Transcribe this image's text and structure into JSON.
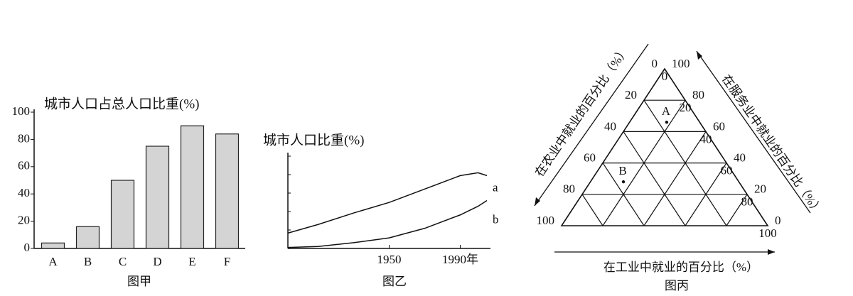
{
  "chart_data": [
    {
      "type": "bar",
      "title": "城市人口占总人口比重(%)",
      "caption": "图甲",
      "categories": [
        "A",
        "B",
        "C",
        "D",
        "E",
        "F"
      ],
      "values": [
        4,
        16,
        50,
        75,
        90,
        84
      ],
      "color": "#d4d4d4",
      "ylim": [
        0,
        100
      ],
      "yticks": [
        0,
        20,
        40,
        60,
        80,
        100
      ]
    },
    {
      "type": "line",
      "title": "城市人口比重(%)",
      "caption": "图乙",
      "x": [
        1893,
        1910,
        1930,
        1950,
        1970,
        1990,
        2000,
        2005
      ],
      "xlim": [
        1893,
        2007
      ],
      "xticks": [
        1950,
        {
          "value": 1990,
          "label": "1990年"
        }
      ],
      "ylim": [
        0,
        100
      ],
      "series": [
        {
          "name": "a",
          "color": "#111",
          "values": [
            16,
            25,
            37,
            48,
            62,
            76,
            79,
            76
          ]
        },
        {
          "name": "b",
          "color": "#111",
          "values": [
            1,
            2,
            6,
            11,
            21,
            35,
            44,
            50
          ]
        }
      ]
    },
    {
      "type": "ternary",
      "caption": "图丙",
      "left_axis": "在农业中就业的百分比（%）",
      "right_axis": "在服务业中就业的百分比（%）",
      "bottom_axis": "在工业中就业的百分比（%）",
      "ticks": [
        0,
        20,
        40,
        60,
        80,
        100
      ],
      "points": [
        {
          "label": "A",
          "agriculture": 16,
          "industry": 18,
          "service": 66
        },
        {
          "label": "B",
          "agriculture": 56,
          "industry": 16,
          "service": 28
        }
      ]
    }
  ]
}
